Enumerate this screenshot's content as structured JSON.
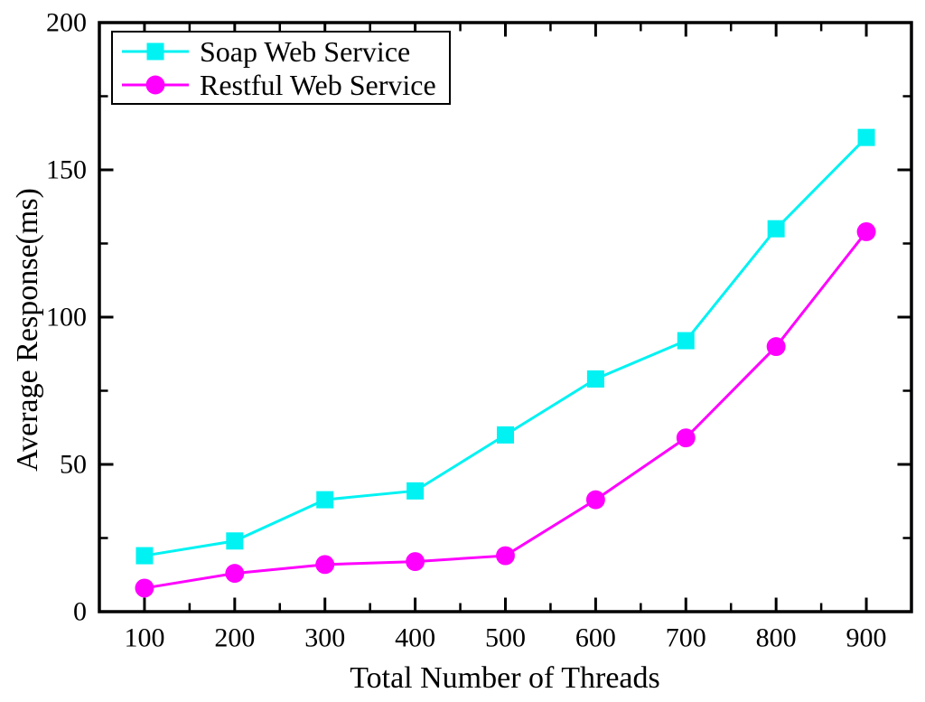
{
  "figure": {
    "background": "#ffffff",
    "axis_color": "#000000",
    "text_color": "#000000"
  },
  "chart_data": {
    "type": "line",
    "title": "",
    "xlabel": "Total Number of Threads",
    "ylabel": "Average Response(ms)",
    "x": [
      100,
      200,
      300,
      400,
      500,
      600,
      700,
      800,
      900
    ],
    "series": [
      {
        "name": "Soap Web Service",
        "color": "#00F2F2",
        "marker": "square",
        "values": [
          19,
          24,
          38,
          41,
          60,
          79,
          92,
          130,
          161
        ]
      },
      {
        "name": "Restful Web Service",
        "color": "#FF00FF",
        "marker": "circle",
        "values": [
          8,
          13,
          16,
          17,
          19,
          38,
          59,
          90,
          129
        ]
      }
    ],
    "xlim": [
      50,
      950
    ],
    "ylim": [
      0,
      200
    ],
    "x_major_ticks": [
      100,
      200,
      300,
      400,
      500,
      600,
      700,
      800,
      900
    ],
    "x_minor_step": 50,
    "y_major_ticks": [
      0,
      50,
      100,
      150,
      200
    ],
    "y_minor_step": 25,
    "grid": false,
    "legend_position": "top-left"
  }
}
